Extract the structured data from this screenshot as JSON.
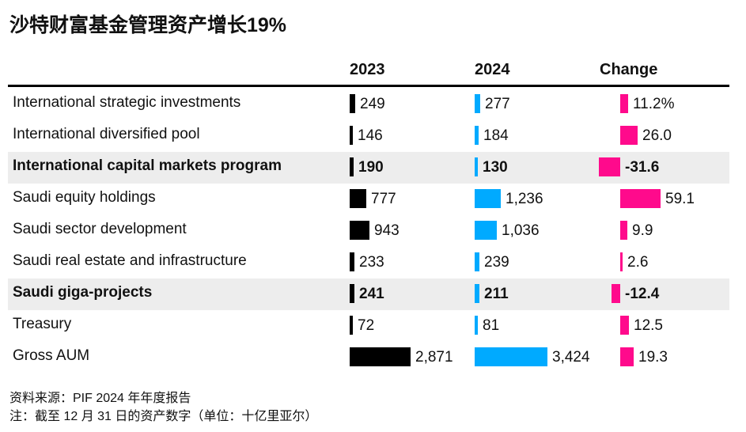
{
  "title": "沙特财富基金管理资产增长19%",
  "columns": {
    "y2023": "2023",
    "y2024": "2024",
    "change": "Change"
  },
  "footer": {
    "source": "资料来源：PIF 2024 年年度报告",
    "note": "注：截至 12 月 31 日的资产数字（单位：十亿里亚尔）"
  },
  "chart_data": {
    "type": "table",
    "title": "沙特财富基金管理资产增长19%",
    "columns": [
      "2023",
      "2024",
      "Change"
    ],
    "rows": [
      {
        "label": "International strategic investments",
        "v2023": 249,
        "v2024": 277,
        "change": 11.2,
        "v2023_text": "249",
        "v2024_text": "277",
        "change_text": "11.2%",
        "highlight": false
      },
      {
        "label": "International diversified pool",
        "v2023": 146,
        "v2024": 184,
        "change": 26.0,
        "v2023_text": "146",
        "v2024_text": "184",
        "change_text": "26.0",
        "highlight": false
      },
      {
        "label": "International capital markets program",
        "v2023": 190,
        "v2024": 130,
        "change": -31.6,
        "v2023_text": "190",
        "v2024_text": "130",
        "change_text": "-31.6",
        "highlight": true
      },
      {
        "label": "Saudi equity holdings",
        "v2023": 777,
        "v2024": 1236,
        "change": 59.1,
        "v2023_text": "777",
        "v2024_text": "1,236",
        "change_text": "59.1",
        "highlight": false
      },
      {
        "label": "Saudi sector development",
        "v2023": 943,
        "v2024": 1036,
        "change": 9.9,
        "v2023_text": "943",
        "v2024_text": "1,036",
        "change_text": "9.9",
        "highlight": false
      },
      {
        "label": "Saudi real estate and infrastructure",
        "v2023": 233,
        "v2024": 239,
        "change": 2.6,
        "v2023_text": "233",
        "v2024_text": "239",
        "change_text": "2.6",
        "highlight": false
      },
      {
        "label": "Saudi giga-projects",
        "v2023": 241,
        "v2024": 211,
        "change": -12.4,
        "v2023_text": "241",
        "v2024_text": "211",
        "change_text": "-12.4",
        "highlight": true
      },
      {
        "label": "Treasury",
        "v2023": 72,
        "v2024": 81,
        "change": 12.5,
        "v2023_text": "72",
        "v2024_text": "81",
        "change_text": "12.5",
        "highlight": false
      },
      {
        "label": "Gross AUM",
        "v2023": 2871,
        "v2024": 3424,
        "change": 19.3,
        "v2023_text": "2,871",
        "v2024_text": "3,424",
        "change_text": "19.3",
        "highlight": false
      }
    ],
    "colors": {
      "y2023": "#000000",
      "y2024": "#00aaff",
      "change": "#ff0a8c",
      "highlight_row": "#ededed"
    }
  }
}
